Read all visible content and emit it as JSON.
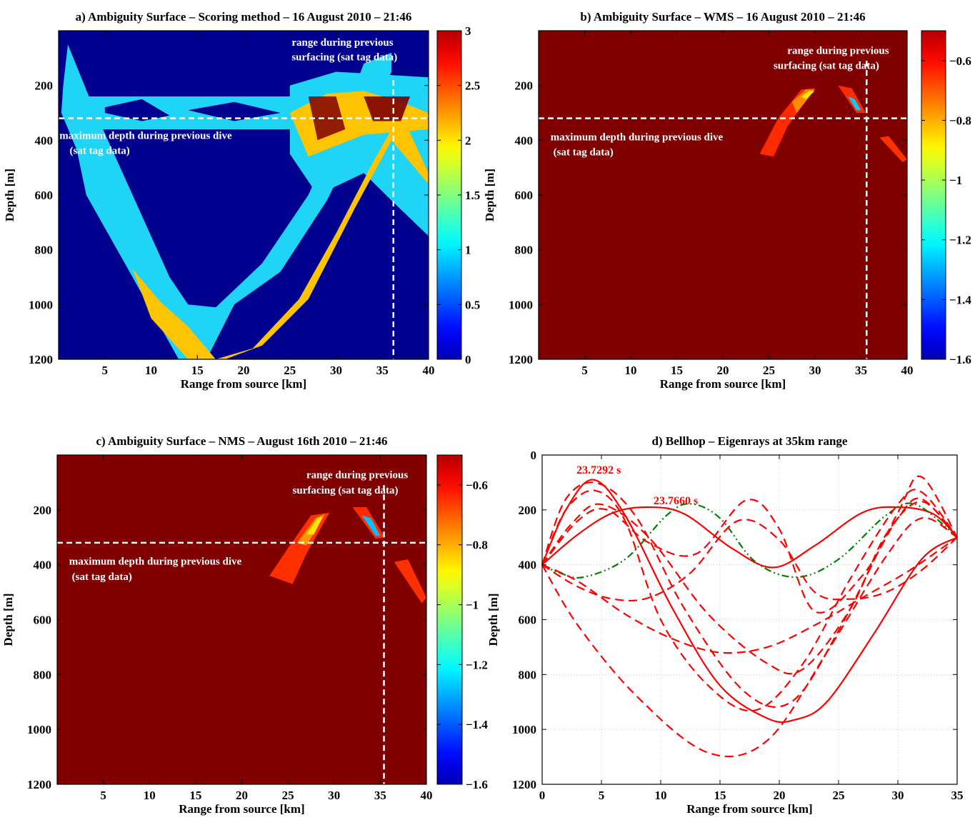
{
  "chart_data": [
    {
      "type": "heatmap",
      "title": "a) Ambiguity Surface – Scoring method – 16 August 2010 – 21:46",
      "xlabel": "Range from source [km]",
      "ylabel": "Depth [m]",
      "xlim": [
        0,
        40
      ],
      "ylim": [
        1200,
        0
      ],
      "xticks": [
        5,
        10,
        15,
        20,
        25,
        30,
        35,
        40
      ],
      "yticks": [
        200,
        400,
        600,
        800,
        1000,
        1200
      ],
      "colorbar": {
        "range": [
          0,
          3
        ],
        "ticks": [
          "3",
          "2.5",
          "2",
          "1.5",
          "1",
          "0.5",
          "0"
        ],
        "colormap": "jet"
      },
      "annotations": {
        "range_line": [
          "range during previous",
          "surfacing  (sat tag data)"
        ],
        "depth_line": [
          "maximum depth during previous dive",
          "(sat tag data)"
        ]
      },
      "reference_lines": {
        "max_depth_m": 320,
        "range_km": 36.2
      }
    },
    {
      "type": "heatmap",
      "title": "b) Ambiguity Surface – WMS – 16 August 2010 – 21:46",
      "xlabel": "Range from source [km]",
      "ylabel": "Depth [m]",
      "xlim": [
        0,
        40
      ],
      "ylim": [
        1200,
        0
      ],
      "xticks": [
        5,
        10,
        15,
        20,
        25,
        30,
        35,
        40
      ],
      "yticks": [
        200,
        400,
        600,
        800,
        1000,
        1200
      ],
      "colorbar": {
        "range": [
          -1.6,
          -0.5
        ],
        "ticks": [
          "−0.6",
          "−0.8",
          "−1",
          "−1.2",
          "−1.4",
          "−1.6"
        ],
        "colormap": "jet"
      },
      "annotations": {
        "range_line": [
          "range during previous",
          "surfacing  (sat tag data)"
        ],
        "depth_line": [
          "maximum depth during previous dive",
          "(sat tag data)"
        ]
      },
      "reference_lines": {
        "max_depth_m": 320,
        "range_km": 35.6
      }
    },
    {
      "type": "heatmap",
      "title": "c) Ambiguity Surface – NMS – August 16th 2010 – 21:46",
      "xlabel": "Range from source [km]",
      "ylabel": "Depth [m]",
      "xlim": [
        0,
        40
      ],
      "ylim": [
        1200,
        0
      ],
      "xticks": [
        5,
        10,
        15,
        20,
        25,
        30,
        35,
        40
      ],
      "yticks": [
        200,
        400,
        600,
        800,
        1000,
        1200
      ],
      "colorbar": {
        "range": [
          -1.6,
          -0.5
        ],
        "ticks": [
          "−0.6",
          "−0.8",
          "−1",
          "−1.2",
          "−1.4",
          "−1.6"
        ],
        "colormap": "jet"
      },
      "annotations": {
        "range_line": [
          "range during previous",
          "surfacing  (sat tag data)"
        ],
        "depth_line": [
          "maximum depth during previous dive",
          "(sat tag data)"
        ]
      },
      "reference_lines": {
        "max_depth_m": 320,
        "range_km": 35.4
      }
    },
    {
      "type": "line",
      "title": "d) Bellhop – Eigenrays at 35km range",
      "xlabel": "Range from source [km]",
      "ylabel": "Depth [m]",
      "xlim": [
        0,
        35
      ],
      "ylim": [
        1200,
        0
      ],
      "xticks": [
        0,
        5,
        10,
        15,
        20,
        25,
        30,
        35
      ],
      "yticks": [
        0,
        200,
        400,
        600,
        800,
        1000,
        1200
      ],
      "grid": true,
      "labels": [
        "23.7292 s",
        "23.7660 s"
      ],
      "series": [
        {
          "style": "solid",
          "x": [
            0,
            2,
            4.3,
            7,
            11,
            15,
            19,
            21.3,
            24,
            28,
            32,
            35
          ],
          "y": [
            400,
            200,
            90,
            220,
            560,
            840,
            960,
            965,
            900,
            650,
            380,
            300
          ]
        },
        {
          "style": "solid",
          "x": [
            0,
            3,
            6,
            9,
            12,
            16,
            19.5,
            23,
            27,
            30,
            33,
            35
          ],
          "y": [
            400,
            290,
            210,
            190,
            215,
            340,
            410,
            330,
            210,
            190,
            215,
            300
          ]
        },
        {
          "style": "dashdot",
          "x": [
            0,
            1.5,
            3.5,
            7,
            10.5,
            12.5,
            15,
            18,
            21.5,
            25,
            29,
            31.5,
            35
          ],
          "y": [
            400,
            430,
            445,
            380,
            220,
            178,
            230,
            390,
            445,
            380,
            220,
            180,
            300
          ]
        },
        {
          "style": "dashed",
          "x": [
            0,
            2,
            4.7,
            8,
            12,
            17,
            21,
            25,
            30,
            32,
            35
          ],
          "y": [
            400,
            160,
            103,
            230,
            560,
            860,
            900,
            640,
            210,
            80,
            300
          ]
        },
        {
          "style": "dashed",
          "x": [
            0,
            2,
            4.5,
            7,
            10,
            14,
            18,
            22,
            26,
            30,
            32,
            35
          ],
          "y": [
            400,
            200,
            130,
            240,
            600,
            840,
            930,
            760,
            450,
            180,
            135,
            300
          ]
        },
        {
          "style": "dashed",
          "x": [
            0,
            2.5,
            5,
            9,
            14,
            19,
            22,
            26,
            29,
            32,
            35
          ],
          "y": [
            400,
            250,
            180,
            300,
            580,
            760,
            780,
            560,
            290,
            170,
            300
          ]
        },
        {
          "style": "dashed",
          "x": [
            0,
            3,
            5.5,
            9,
            13,
            17.2,
            20,
            23,
            27,
            30,
            32,
            35
          ],
          "y": [
            400,
            240,
            200,
            320,
            360,
            165,
            270,
            570,
            440,
            230,
            160,
            300
          ]
        },
        {
          "style": "dashed",
          "x": [
            0,
            3,
            6,
            9,
            12.5,
            16.5,
            20,
            23,
            26,
            29,
            32,
            35
          ],
          "y": [
            400,
            480,
            525,
            520,
            430,
            240,
            310,
            500,
            525,
            500,
            420,
            300
          ]
        },
        {
          "style": "dashed",
          "x": [
            0,
            3,
            8,
            14,
            19,
            24,
            29,
            32,
            35
          ],
          "y": [
            400,
            620,
            880,
            1085,
            1040,
            720,
            370,
            230,
            300
          ]
        },
        {
          "style": "dashed",
          "x": [
            0,
            3,
            7,
            11,
            15,
            19,
            23,
            27,
            31,
            35
          ],
          "y": [
            400,
            460,
            580,
            670,
            720,
            700,
            620,
            520,
            420,
            300
          ]
        }
      ]
    }
  ]
}
